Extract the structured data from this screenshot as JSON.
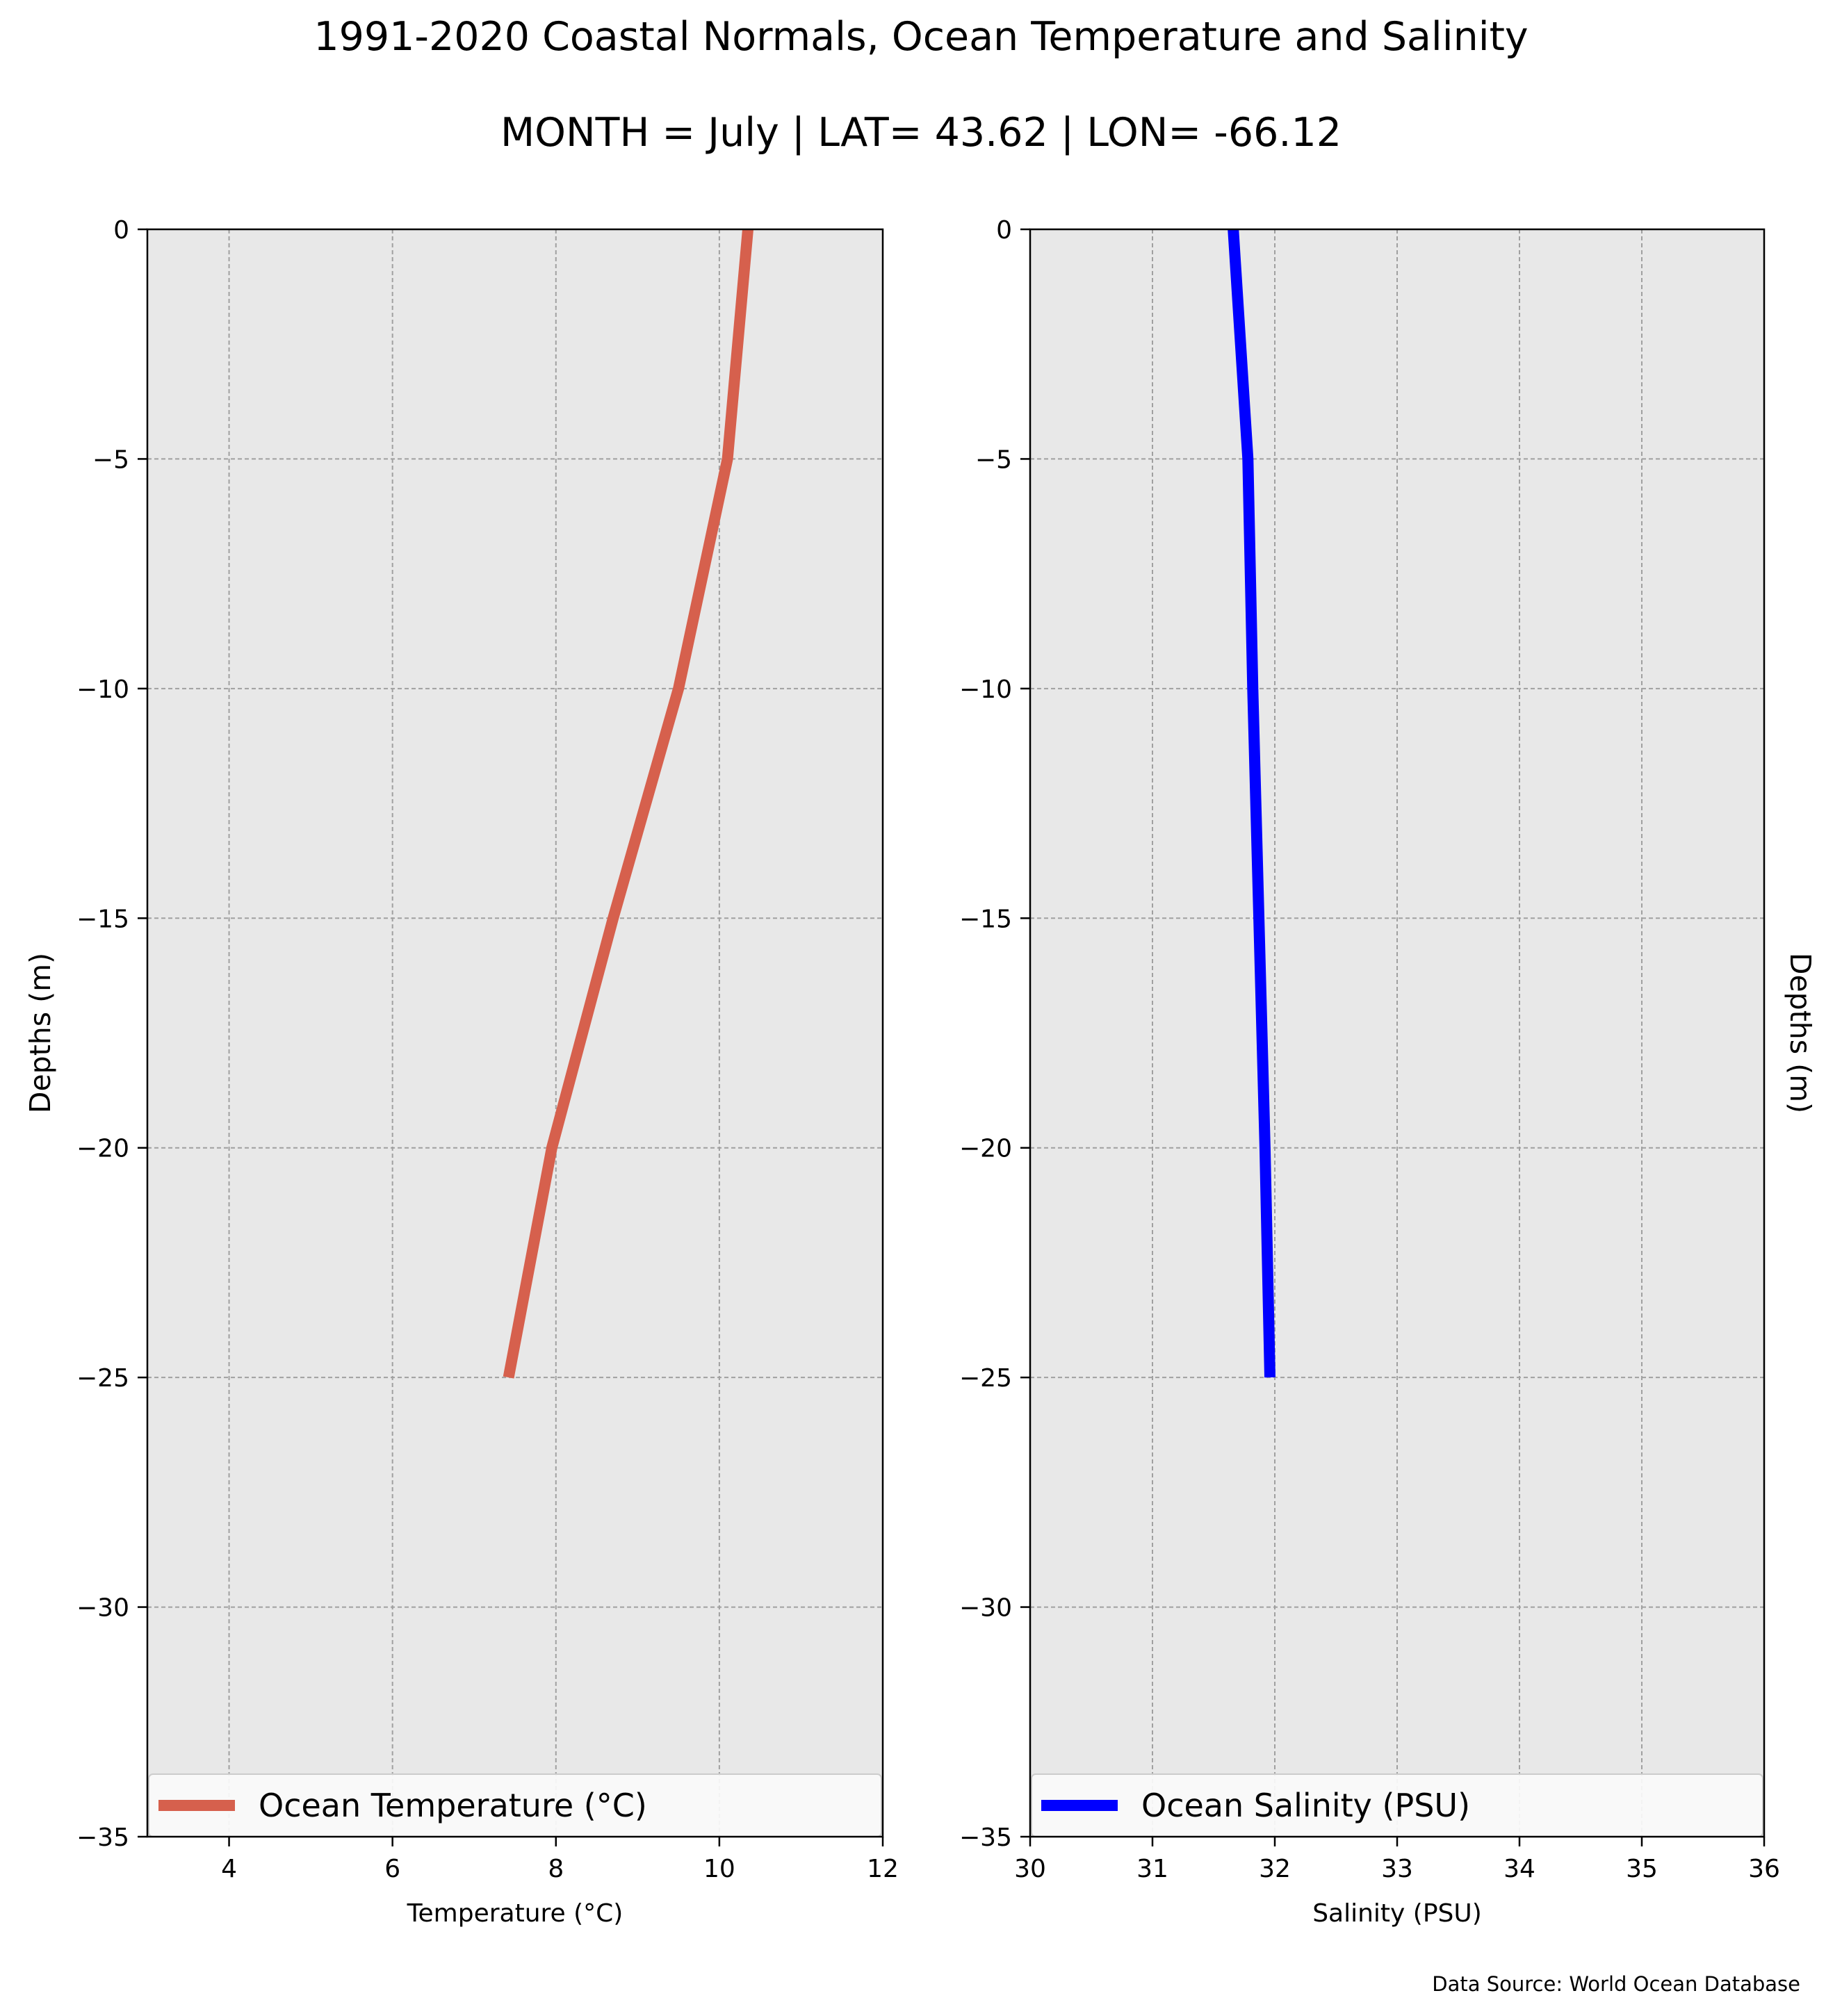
{
  "title": "1991-2020 Coastal Normals, Ocean Temperature and Salinity",
  "subtitle": "MONTH = July | LAT= 43.62 | LON= -66.12",
  "source_note": "Data Source: World Ocean Database",
  "colors": {
    "background": "#ffffff",
    "plot_background": "#e8e8e8",
    "grid": "#a0a0a0",
    "temperature_line": "#d6604d",
    "salinity_line": "#0000ff"
  },
  "chart_data": [
    {
      "type": "line",
      "xlabel": "Temperature ($^\\circ$C)",
      "ylabel": "Depths (m)",
      "xlim": [
        3,
        12
      ],
      "ylim": [
        -35,
        0
      ],
      "x_ticks": [
        4,
        6,
        8,
        10,
        12
      ],
      "y_ticks": [
        0,
        -5,
        -10,
        -15,
        -20,
        -25,
        -30,
        -35
      ],
      "x_tick_labels": [
        "4",
        "6",
        "8",
        "10",
        "12"
      ],
      "y_tick_labels": [
        "0",
        "−5",
        "−10",
        "−15",
        "−20",
        "−25",
        "−30",
        "−35"
      ],
      "grid": true,
      "legend_position": "lower-center",
      "series": [
        {
          "name": "Ocean Temperature ($^\\circ$C)",
          "color": "#d6604d",
          "x": [
            10.35,
            10.1,
            9.5,
            8.7,
            7.95,
            7.42
          ],
          "y": [
            0,
            -5,
            -10,
            -15,
            -20,
            -25
          ]
        }
      ]
    },
    {
      "type": "line",
      "xlabel": "Salinity (PSU)",
      "ylabel": "Depths (m)",
      "xlim": [
        30,
        36
      ],
      "ylim": [
        -35,
        0
      ],
      "x_ticks": [
        30,
        31,
        32,
        33,
        34,
        35,
        36
      ],
      "y_ticks": [
        0,
        -5,
        -10,
        -15,
        -20,
        -25,
        -30,
        -35
      ],
      "x_tick_labels": [
        "30",
        "31",
        "32",
        "33",
        "34",
        "35",
        "36"
      ],
      "y_tick_labels": [
        "0",
        "−5",
        "−10",
        "−15",
        "−20",
        "−25",
        "−30",
        "−35"
      ],
      "grid": true,
      "legend_position": "lower-center",
      "series": [
        {
          "name": "Ocean Salinity (PSU)",
          "color": "#0000ff",
          "x": [
            31.66,
            31.78,
            31.82,
            31.87,
            31.92,
            31.96
          ],
          "y": [
            0,
            -5,
            -10,
            -15,
            -20,
            -25
          ]
        }
      ]
    }
  ]
}
